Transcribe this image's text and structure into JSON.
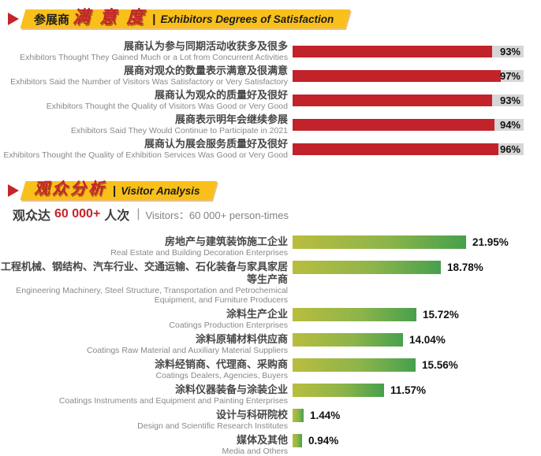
{
  "sections": {
    "satisfaction": {
      "banner": {
        "prefix_cn": "参展商",
        "stylized_cn": "满 意 度",
        "divider": "|",
        "title_en": "Exhibitors Degrees of Satisfaction"
      }
    },
    "visitors": {
      "banner": {
        "stylized_cn": "观众分析",
        "divider": "|",
        "title_en": "Visitor Analysis"
      },
      "stat_line": {
        "prefix_cn": "观众达",
        "count": "60 000+",
        "suffix_cn": "人次",
        "divider": "|",
        "en": "Visitors：60 000+ person-times"
      }
    }
  },
  "colors": {
    "banner_yellow": "#f9c01b",
    "accent_red": "#c5242b",
    "bar_red": "#c2232b",
    "track_gray": "#d6d6d6",
    "green_gradient_start": "#b9bd3e",
    "green_gradient_end": "#47a04d",
    "label_cn_gray": "#474747",
    "label_en_gray": "#88898b"
  },
  "chart_data": [
    {
      "type": "bar",
      "orientation": "horizontal",
      "title": "Exhibitors Degrees of Satisfaction",
      "unit": "%",
      "xlim": [
        0,
        100
      ],
      "bar_color": "#c2232b",
      "track_color": "#d6d6d6",
      "bars": [
        {
          "label_cn": "展商认为参与同期活动收获多及很多",
          "label_en": "Exhibitors Thought They Gained Much or a Lot from Concurrent Activities",
          "value": 93,
          "display": "93%"
        },
        {
          "label_cn": "展商对观众的数量表示满意及很满意",
          "label_en": "Exhibitors Said the Number of Visitors Was Satisfactory or Very Satisfactory",
          "value": 97,
          "display": "97%"
        },
        {
          "label_cn": "展商认为观众的质量好及很好",
          "label_en": "Exhibitors Thought the Quality of Visitors Was Good or Very Good",
          "value": 93,
          "display": "93%"
        },
        {
          "label_cn": "展商表示明年会继续参展",
          "label_en": "Exhibitors Said They Would Continue to Participate in 2021",
          "value": 94,
          "display": "94%"
        },
        {
          "label_cn": "展商认为展会服务质量好及很好",
          "label_en": "Exhibitors Thought the Quality of Exhibition Services Was Good or Very Good",
          "value": 96,
          "display": "96%"
        }
      ]
    },
    {
      "type": "bar",
      "orientation": "horizontal",
      "title": "Visitor Analysis",
      "unit": "%",
      "bar_gradient": [
        "#b9bd3e",
        "#47a04d"
      ],
      "bars": [
        {
          "label_cn": "房地产与建筑装饰施工企业",
          "label_en": "Real Estate and Building Decoration Enterprises",
          "value": 21.95,
          "display": "21.95%"
        },
        {
          "label_cn": "工程机械、钢结构、汽车行业、交通运输、石化装备与家具家居等生产商",
          "label_en": "Engineering Machinery, Steel Structure, Transportation and Petrochemical Equipment, and Furniture Producers",
          "value": 18.78,
          "display": "18.78%"
        },
        {
          "label_cn": "涂料生产企业",
          "label_en": "Coatings Production Enterprises",
          "value": 15.72,
          "display": "15.72%"
        },
        {
          "label_cn": "涂料原辅材料供应商",
          "label_en": "Coatings Raw Material and Auxiliary Material Suppliers",
          "value": 14.04,
          "display": "14.04%"
        },
        {
          "label_cn": "涂料经销商、代理商、采购商",
          "label_en": "Coatings Dealers, Agencies, Buyers",
          "value": 15.56,
          "display": "15.56%"
        },
        {
          "label_cn": "涂料仪器装备与涂装企业",
          "label_en": "Coatings Instruments and Equipment and Painting Enterprises",
          "value": 11.57,
          "display": "11.57%"
        },
        {
          "label_cn": "设计与科研院校",
          "label_en": "Design and Scientific Research Institutes",
          "value": 1.44,
          "display": "1.44%"
        },
        {
          "label_cn": "媒体及其他",
          "label_en": "Media and Others",
          "value": 0.94,
          "display": "0.94%"
        }
      ]
    }
  ]
}
